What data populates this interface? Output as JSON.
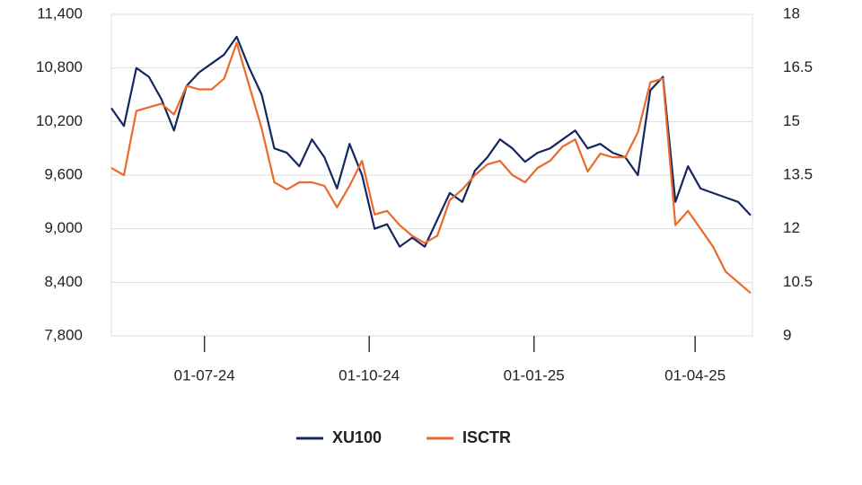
{
  "chart_data": {
    "type": "line",
    "x": [
      "2024-05-10",
      "2024-05-17",
      "2024-05-24",
      "2024-05-31",
      "2024-06-07",
      "2024-06-14",
      "2024-06-21",
      "2024-06-28",
      "2024-07-05",
      "2024-07-12",
      "2024-07-19",
      "2024-07-26",
      "2024-08-02",
      "2024-08-09",
      "2024-08-16",
      "2024-08-23",
      "2024-08-30",
      "2024-09-06",
      "2024-09-13",
      "2024-09-20",
      "2024-09-27",
      "2024-10-04",
      "2024-10-11",
      "2024-10-18",
      "2024-10-25",
      "2024-11-01",
      "2024-11-08",
      "2024-11-15",
      "2024-11-22",
      "2024-11-29",
      "2024-12-06",
      "2024-12-13",
      "2024-12-20",
      "2024-12-27",
      "2025-01-03",
      "2025-01-10",
      "2025-01-17",
      "2025-01-24",
      "2025-01-31",
      "2025-02-07",
      "2025-02-14",
      "2025-02-21",
      "2025-02-28",
      "2025-03-07",
      "2025-03-14",
      "2025-03-21",
      "2025-03-28",
      "2025-04-04",
      "2025-04-11",
      "2025-04-18",
      "2025-04-25",
      "2025-05-02"
    ],
    "series": [
      {
        "name": "XU100",
        "color": "#14285f",
        "axis": "y",
        "values": [
          10350,
          10150,
          10800,
          10700,
          10450,
          10100,
          10600,
          10750,
          10850,
          10950,
          11150,
          10800,
          10500,
          9900,
          9850,
          9700,
          10000,
          9800,
          9450,
          9950,
          9600,
          9000,
          9050,
          8800,
          8900,
          8800,
          9100,
          9400,
          9300,
          9650,
          9800,
          10000,
          9900,
          9750,
          9850,
          9900,
          10000,
          10100,
          9900,
          9950,
          9850,
          9800,
          9600,
          10550,
          10700,
          9300,
          9700,
          9450,
          9400,
          9350,
          9300,
          9150
        ]
      },
      {
        "name": "ISCTR",
        "color": "#ea6a2c",
        "axis": "y2",
        "values": [
          13.7,
          13.5,
          15.3,
          15.4,
          15.5,
          15.2,
          16.0,
          15.9,
          15.9,
          16.2,
          17.2,
          16.0,
          14.8,
          13.3,
          13.1,
          13.3,
          13.3,
          13.2,
          12.6,
          13.2,
          13.9,
          12.4,
          12.5,
          12.1,
          11.8,
          11.6,
          11.8,
          12.8,
          13.1,
          13.5,
          13.8,
          13.9,
          13.5,
          13.3,
          13.7,
          13.9,
          14.3,
          14.5,
          13.6,
          14.1,
          14.0,
          14.0,
          14.7,
          16.1,
          16.2,
          12.1,
          12.5,
          12.0,
          11.5,
          10.8,
          10.5,
          10.2
        ]
      }
    ],
    "xlim": [
      "2024-05-10",
      "2025-05-03"
    ],
    "xticks": [
      {
        "value": "2024-07-01",
        "label": "01-07-24"
      },
      {
        "value": "2024-10-01",
        "label": "01-10-24"
      },
      {
        "value": "2025-01-01",
        "label": "01-01-25"
      },
      {
        "value": "2025-04-01",
        "label": "01-04-25"
      }
    ],
    "ylim": [
      7800,
      11400
    ],
    "yticks": [
      {
        "value": 7800,
        "label": "7,800"
      },
      {
        "value": 8400,
        "label": "8,400"
      },
      {
        "value": 9000,
        "label": "9,000"
      },
      {
        "value": 9600,
        "label": "9,600"
      },
      {
        "value": 10200,
        "label": "10,200"
      },
      {
        "value": 10800,
        "label": "10,800"
      },
      {
        "value": 11400,
        "label": "11,400"
      }
    ],
    "y2lim": [
      9,
      18
    ],
    "y2ticks": [
      9,
      {
        "value": 10.5,
        "label": "10.5"
      },
      12,
      {
        "value": 13.5,
        "label": "13.5"
      },
      15,
      {
        "value": 16.5,
        "label": "16.5"
      },
      18
    ],
    "grid": true,
    "legend": "bottom"
  }
}
